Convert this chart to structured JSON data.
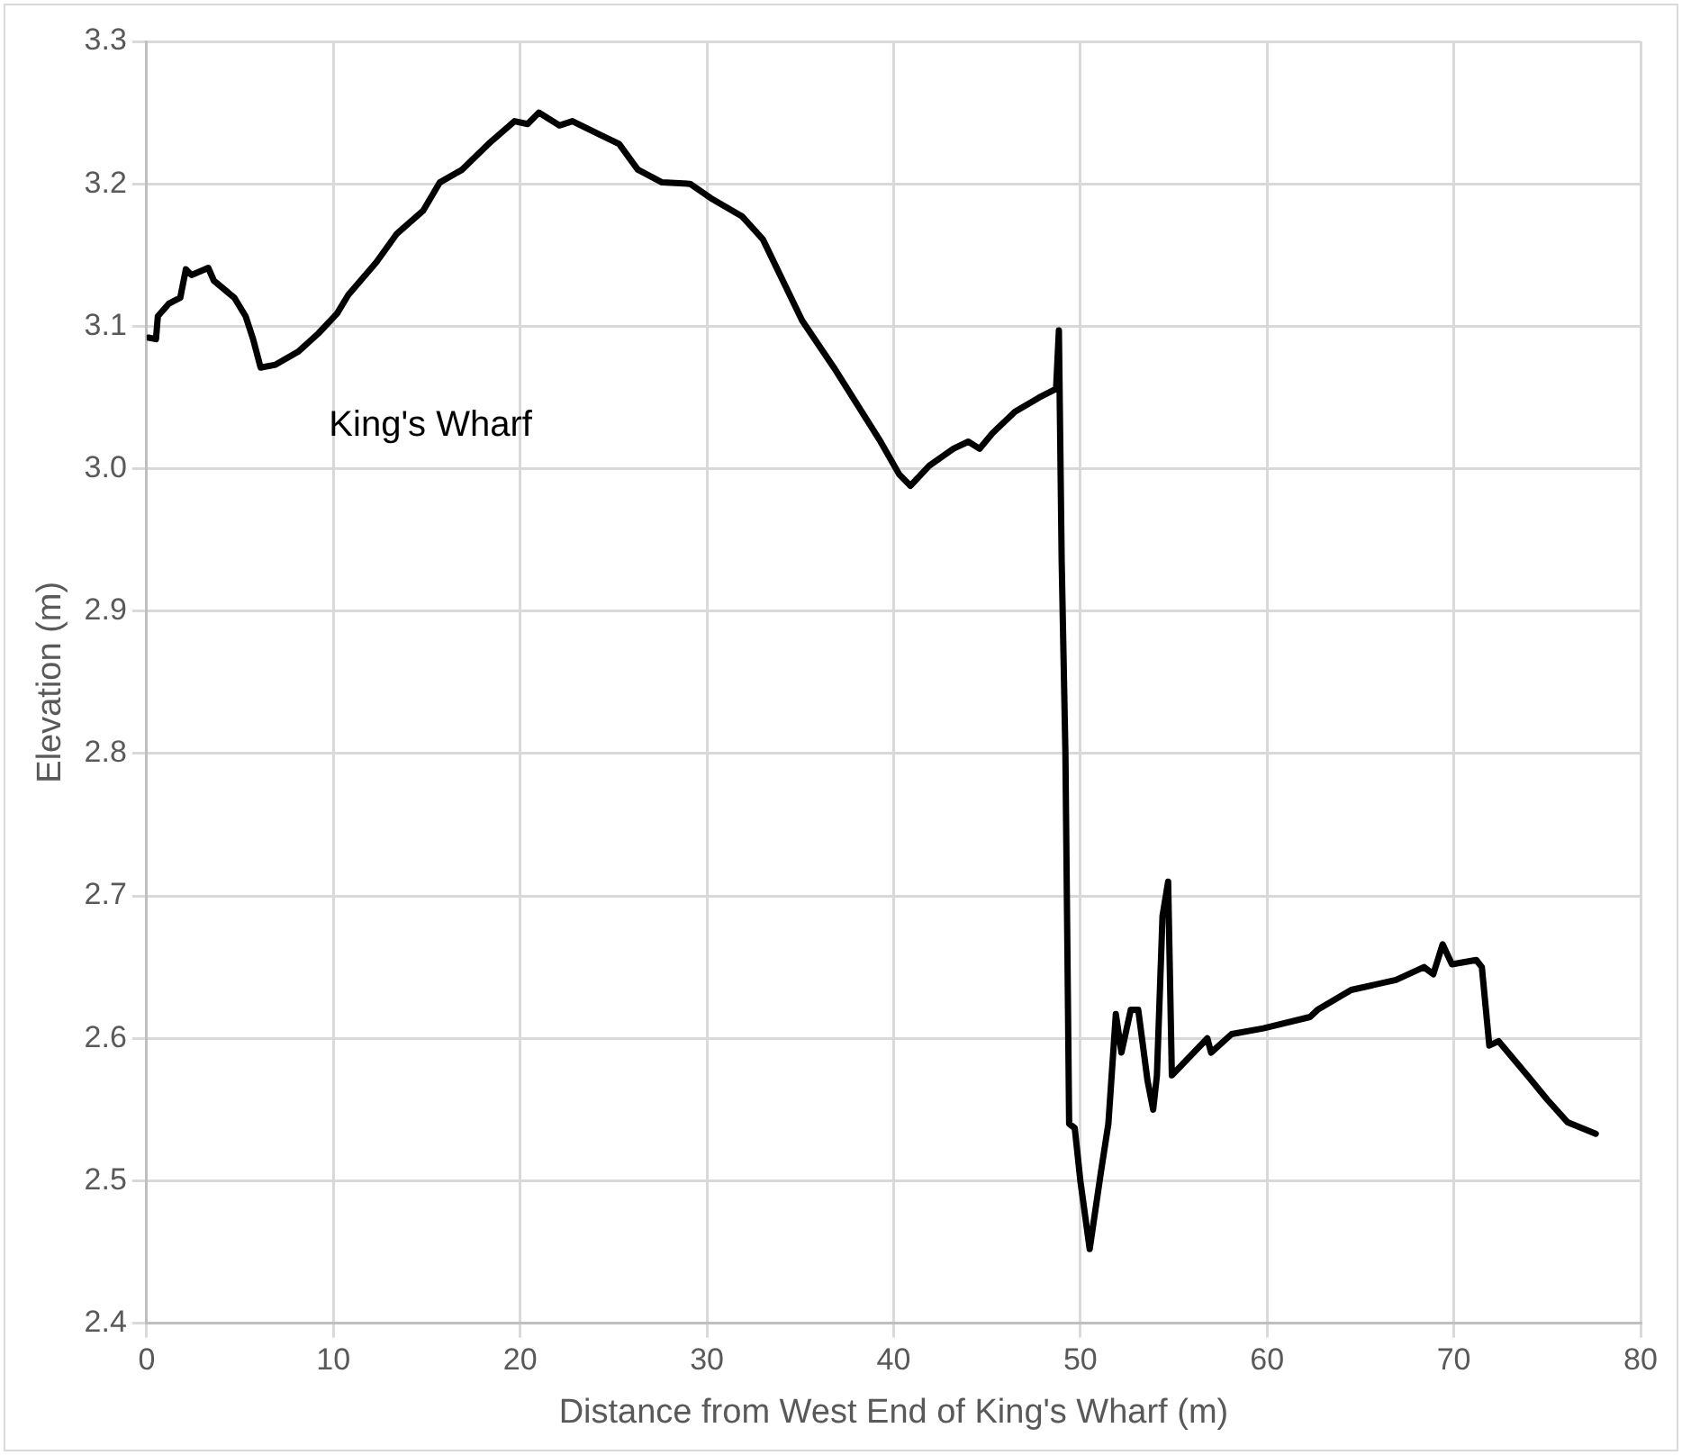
{
  "chart_data": {
    "type": "line",
    "xlabel": "Distance from West End of King's Wharf (m)",
    "ylabel": "Elevation (m)",
    "annotations": [
      "King's Wharf"
    ],
    "xlim": [
      0,
      80
    ],
    "xticks": [
      0,
      10,
      20,
      30,
      40,
      50,
      60,
      70,
      80
    ],
    "ylim": [
      2.4,
      3.3
    ],
    "yticks": [
      {
        "value": 2.4,
        "label": "2.4"
      },
      {
        "value": 2.5,
        "label": "2.5"
      },
      {
        "value": 2.6,
        "label": "2.6"
      },
      {
        "value": 2.7,
        "label": "2.7"
      },
      {
        "value": 2.8,
        "label": "2.8"
      },
      {
        "value": 2.9,
        "label": "2.9"
      },
      {
        "value": 3.0,
        "label": "3.0"
      },
      {
        "value": 3.1,
        "label": "3.1"
      },
      {
        "value": 3.2,
        "label": "3.2"
      },
      {
        "value": 3.3,
        "label": "3.3"
      }
    ],
    "grid": true,
    "legend": false,
    "marker": "none",
    "line_style": "solid",
    "series": [
      {
        "color": "#000000",
        "x": [
          0.1,
          0.5,
          0.6,
          1.2,
          1.8,
          2.1,
          2.4,
          3.3,
          3.6,
          4.7,
          5.3,
          5.7,
          6.1,
          6.9,
          8.1,
          9.2,
          10.2,
          10.8,
          12.3,
          13.4,
          14.8,
          15.7,
          16.9,
          18.3,
          19.7,
          20.4,
          21.0,
          22.1,
          22.8,
          24.2,
          25.3,
          26.3,
          27.6,
          29.1,
          30.2,
          31.9,
          33.0,
          35.1,
          36.8,
          39.3,
          40.3,
          40.9,
          41.9,
          43.2,
          44.0,
          44.6,
          45.3,
          46.5,
          47.8,
          48.7,
          48.85,
          49.0,
          49.2,
          49.4,
          49.7,
          50.0,
          50.5,
          51.1,
          51.5,
          51.9,
          52.2,
          52.7,
          53.1,
          53.6,
          53.9,
          54.1,
          54.4,
          54.7,
          54.9,
          55.7,
          56.8,
          57.0,
          58.1,
          59.8,
          62.3,
          62.7,
          64.5,
          66.9,
          68.4,
          68.9,
          69.4,
          69.9,
          71.2,
          71.5,
          71.9,
          72.4,
          74.0,
          75.0,
          76.1,
          77.6
        ],
        "values": [
          3.092,
          3.091,
          3.107,
          3.116,
          3.12,
          3.14,
          3.136,
          3.141,
          3.132,
          3.12,
          3.107,
          3.091,
          3.071,
          3.073,
          3.082,
          3.095,
          3.109,
          3.122,
          3.145,
          3.165,
          3.181,
          3.201,
          3.21,
          3.228,
          3.244,
          3.242,
          3.25,
          3.241,
          3.244,
          3.235,
          3.228,
          3.21,
          3.201,
          3.2,
          3.19,
          3.177,
          3.161,
          3.104,
          3.071,
          3.019,
          2.996,
          2.988,
          3.002,
          3.014,
          3.019,
          3.014,
          3.025,
          3.04,
          3.05,
          3.056,
          3.097,
          2.935,
          2.8,
          2.54,
          2.537,
          2.5,
          2.452,
          2.506,
          2.54,
          2.617,
          2.59,
          2.62,
          2.62,
          2.57,
          2.55,
          2.574,
          2.686,
          2.71,
          2.574,
          2.585,
          2.6,
          2.59,
          2.603,
          2.607,
          2.615,
          2.62,
          2.634,
          2.641,
          2.65,
          2.645,
          2.666,
          2.652,
          2.655,
          2.65,
          2.595,
          2.598,
          2.573,
          2.557,
          2.541,
          2.533
        ]
      }
    ]
  }
}
